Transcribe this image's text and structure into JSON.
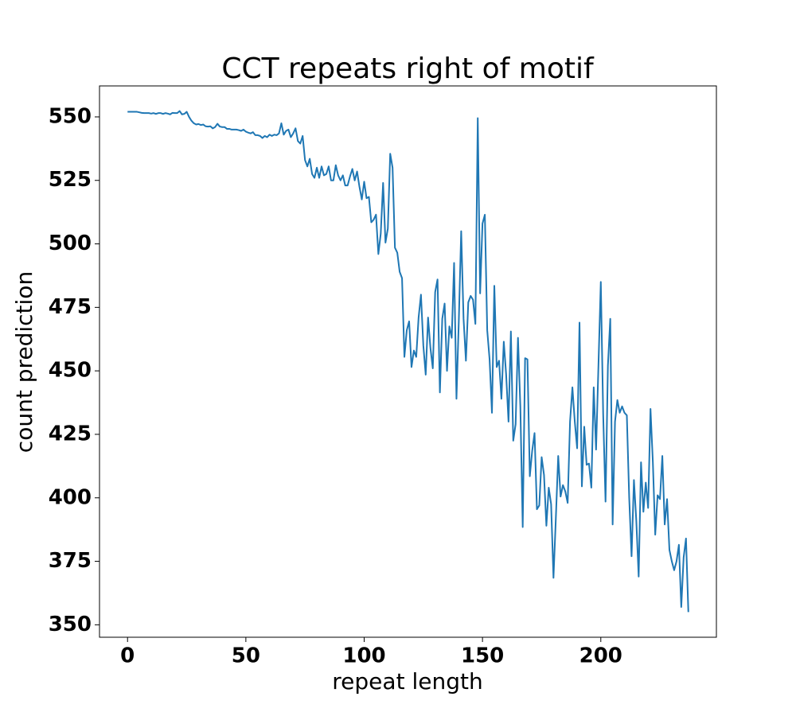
{
  "chart_data": {
    "type": "line",
    "title": "CCT repeats right of motif",
    "xlabel": "repeat length",
    "ylabel": "count prediction",
    "x": [
      0,
      1,
      2,
      3,
      4,
      5,
      6,
      7,
      8,
      9,
      10,
      11,
      12,
      13,
      14,
      15,
      16,
      17,
      18,
      19,
      20,
      21,
      22,
      23,
      24,
      25,
      26,
      27,
      28,
      29,
      30,
      31,
      32,
      33,
      34,
      35,
      36,
      37,
      38,
      39,
      40,
      41,
      42,
      43,
      44,
      45,
      46,
      47,
      48,
      49,
      50,
      51,
      52,
      53,
      54,
      55,
      56,
      57,
      58,
      59,
      60,
      61,
      62,
      63,
      64,
      65,
      66,
      67,
      68,
      69,
      70,
      71,
      72,
      73,
      74,
      75,
      76,
      77,
      78,
      79,
      80,
      81,
      82,
      83,
      84,
      85,
      86,
      87,
      88,
      89,
      90,
      91,
      92,
      93,
      94,
      95,
      96,
      97,
      98,
      99,
      100,
      101,
      102,
      103,
      104,
      105,
      106,
      107,
      108,
      109,
      110,
      111,
      112,
      113,
      114,
      115,
      116,
      117,
      118,
      119,
      120,
      121,
      122,
      123,
      124,
      125,
      126,
      127,
      128,
      129,
      130,
      131,
      132,
      133,
      134,
      135,
      136,
      137,
      138,
      139,
      140,
      141,
      142,
      143,
      144,
      145,
      146,
      147,
      148,
      149,
      150,
      151,
      152,
      153,
      154,
      155,
      156,
      157,
      158,
      159,
      160,
      161,
      162,
      163,
      164,
      165,
      166,
      167,
      168,
      169,
      170,
      171,
      172,
      173,
      174,
      175,
      176,
      177,
      178,
      179,
      180,
      181,
      182,
      183,
      184,
      185,
      186,
      187,
      188,
      189,
      190,
      191,
      192,
      193,
      194,
      195,
      196,
      197,
      198,
      199,
      200,
      201,
      202,
      203,
      204,
      205,
      206,
      207,
      208,
      209,
      210,
      211,
      212,
      213,
      214,
      215,
      216,
      217,
      218,
      219,
      220,
      221,
      222,
      223,
      224,
      225,
      226,
      227,
      228,
      229,
      230,
      231,
      232,
      233,
      234,
      235,
      236,
      237
    ],
    "series": [
      {
        "name": "count prediction",
        "color": "#1f77b4",
        "values": [
          552,
          552,
          552,
          552,
          552,
          551.8,
          551.6,
          551.5,
          551.5,
          551.5,
          551.3,
          551.5,
          551.2,
          551.5,
          551.5,
          551.2,
          551.5,
          551.3,
          551,
          551.6,
          551.5,
          551.5,
          552.3,
          551,
          551.2,
          552,
          550,
          548.5,
          547.5,
          547,
          547.2,
          546.8,
          547,
          546.3,
          546.2,
          546.3,
          545.5,
          546,
          547.3,
          546.2,
          546,
          546,
          545.3,
          545.3,
          545,
          545,
          545,
          544.8,
          544.5,
          545,
          544.2,
          543.8,
          543.5,
          544,
          542.8,
          542.8,
          542.5,
          541.7,
          542.5,
          542,
          543,
          542.5,
          543,
          542.8,
          543.5,
          547.5,
          543,
          544.5,
          545,
          542,
          543.5,
          545.5,
          540.5,
          539.5,
          542.5,
          533,
          530.5,
          533.5,
          527.5,
          526,
          530,
          526,
          530.5,
          527,
          527.5,
          530.5,
          525,
          525,
          531,
          527,
          525,
          527,
          523,
          523,
          526.5,
          529.5,
          525,
          528.5,
          522.5,
          517.5,
          524.5,
          518,
          518.5,
          508.5,
          509.5,
          511.5,
          496,
          504,
          524,
          500.5,
          506,
          535.5,
          530,
          498.5,
          496.5,
          489,
          486.5,
          455.5,
          466,
          469.5,
          451.5,
          458,
          455.5,
          471,
          480,
          460,
          448.5,
          471,
          459,
          451,
          481,
          486,
          441.5,
          470.5,
          476.5,
          450,
          467.5,
          463,
          492.5,
          439,
          470,
          505,
          470.5,
          454,
          477,
          479.5,
          478,
          468.5,
          549.5,
          480.5,
          508,
          511.5,
          466,
          454.5,
          433.5,
          483.5,
          451.5,
          454,
          439,
          461.5,
          448.5,
          430,
          465.5,
          422.5,
          429,
          463,
          436,
          388.5,
          455,
          454.5,
          408.5,
          418.5,
          425.5,
          395.5,
          397,
          416,
          409,
          389,
          404,
          397.5,
          368.5,
          392,
          416.5,
          400.5,
          405,
          402.5,
          398,
          430,
          443.5,
          430,
          419.5,
          469,
          404.5,
          428,
          413,
          413.5,
          404,
          443.5,
          419,
          452,
          485,
          433,
          398.5,
          452,
          470.5,
          389.5,
          430,
          438.5,
          433.5,
          436,
          433.5,
          432.5,
          400,
          377,
          407,
          391,
          369,
          414,
          394.5,
          406,
          396,
          435,
          414,
          385.5,
          401,
          399.5,
          416.5,
          389.5,
          399.5,
          379.5,
          375,
          371.5,
          375,
          381.5,
          357,
          376.5,
          384,
          355
        ]
      }
    ],
    "xlim": [
      -11.85,
      248.85
    ],
    "ylim": [
      345.1,
      562.2
    ],
    "xticks": [
      0,
      50,
      100,
      150,
      200
    ],
    "yticks": [
      350,
      375,
      400,
      425,
      450,
      475,
      500,
      525,
      550
    ],
    "grid": false
  }
}
